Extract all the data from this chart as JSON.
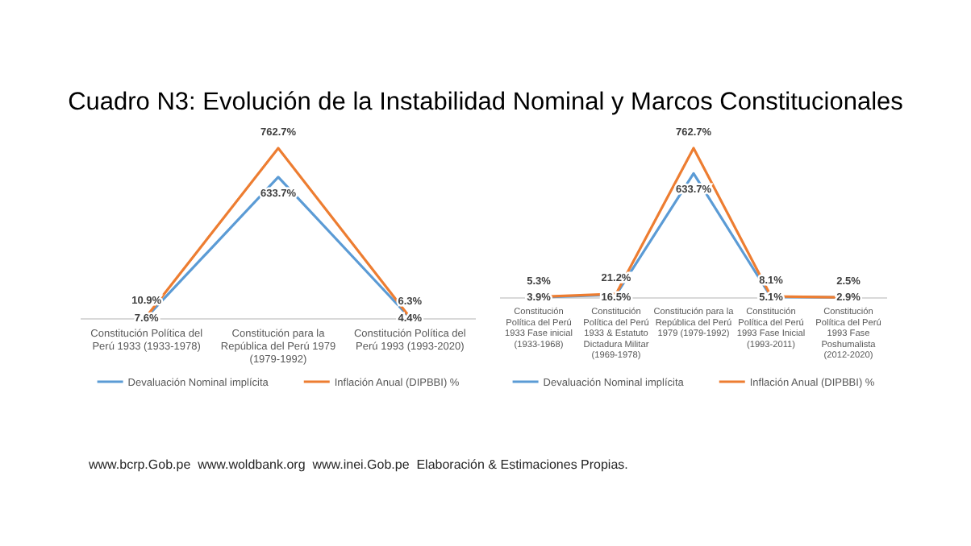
{
  "chart_data": [
    {
      "type": "line",
      "title": "Cuadro N3: Evolución de la Instabilidad Nominal y Marcos Constitucionales",
      "annotations": [
        "www.bcrp.Gob.pe  www.woldbank.org  www.inei.Gob.pe  Elaboración & Estimaciones Propias."
      ],
      "categories": [
        "Constitución Política del Perú 1933 (1933-1978)",
        "Constitución para la República del Perú 1979 (1979-1992)",
        "Constitución Política del Perú 1993 (1993-2020)"
      ],
      "series": [
        {
          "name": "Devaluación Nominal implícita",
          "color": "#5b9bd5",
          "values": [
            7.6,
            633.7,
            4.4
          ],
          "value_labels": [
            "7.6%",
            "633.7%",
            "4.4%"
          ]
        },
        {
          "name": "Inflación Anual (DIPBBI) %",
          "color": "#ed7d31",
          "values": [
            10.9,
            762.7,
            6.3
          ],
          "value_labels": [
            "10.9%",
            "762.7%",
            "6.3%"
          ]
        }
      ],
      "legend": "bottom",
      "marker": "none",
      "line_style": "solid"
    },
    {
      "type": "line",
      "categories": [
        "Constitución Política del Perú 1933 Fase inicial (1933-1968)",
        "Constitución Política del Perú 1933 & Estatuto Dictadura Militar (1969-1978)",
        "Constitución para la República del Perú 1979 (1979-1992)",
        "Constitución Política del Perú 1993 Fase Inicial (1993-2011)",
        "Constitución Política del Perú 1993 Fase Poshumalista (2012-2020)"
      ],
      "series": [
        {
          "name": "Devaluación Nominal implícita",
          "color": "#5b9bd5",
          "values": [
            3.9,
            16.5,
            633.7,
            5.1,
            2.9
          ],
          "value_labels": [
            "3.9%",
            "16.5%",
            "633.7%",
            "5.1%",
            "2.9%"
          ]
        },
        {
          "name": "Inflación Anual (DIPBBI) %",
          "color": "#ed7d31",
          "values": [
            5.3,
            21.2,
            762.7,
            8.1,
            2.5
          ],
          "value_labels": [
            "5.3%",
            "21.2%",
            "762.7%",
            "8.1%",
            "2.5%"
          ]
        }
      ],
      "legend": "bottom",
      "marker": "none",
      "line_style": "solid"
    }
  ]
}
